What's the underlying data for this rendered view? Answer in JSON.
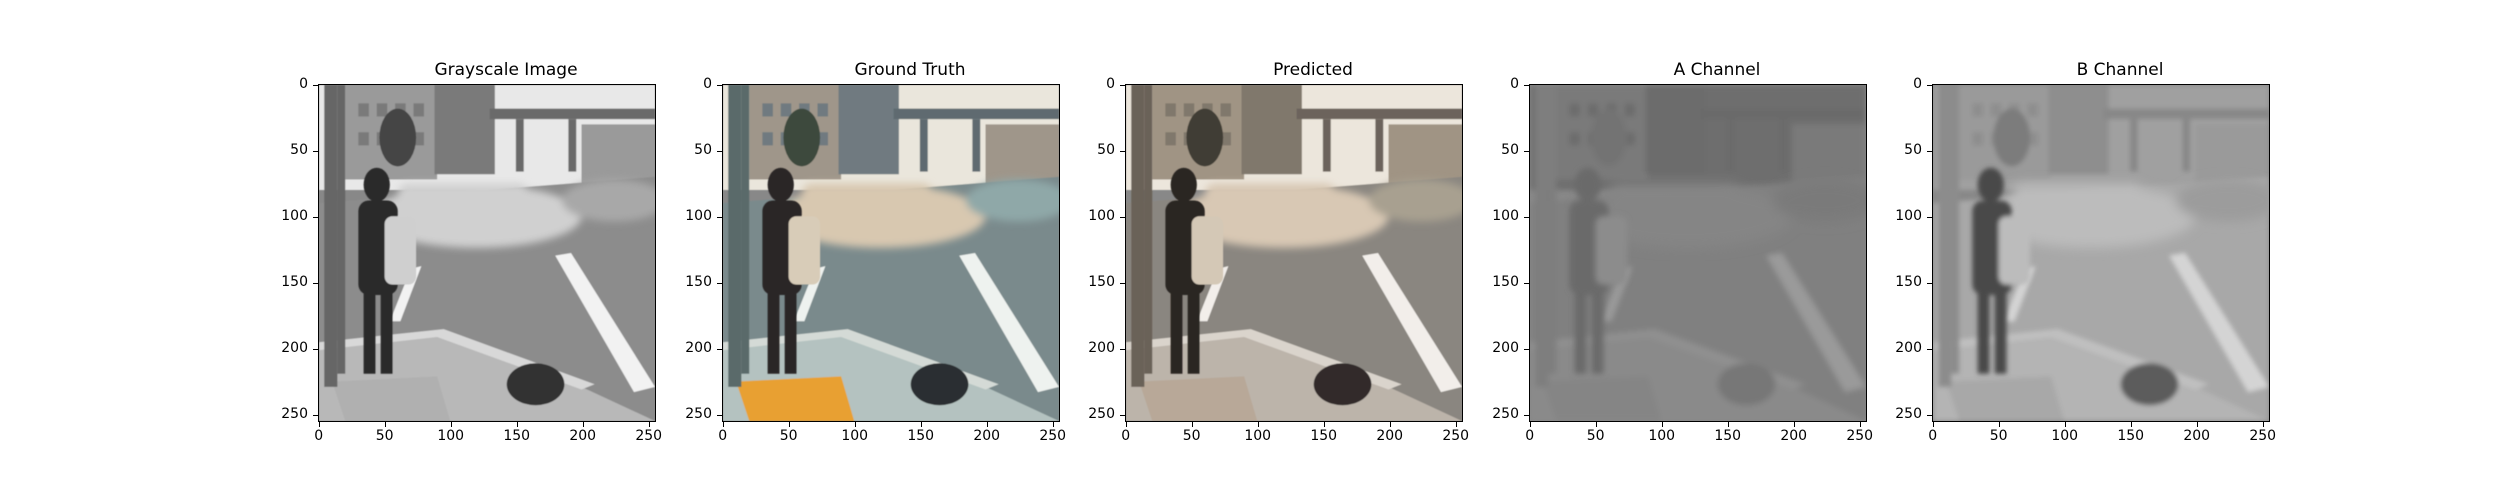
{
  "panels": [
    {
      "title": "Grayscale Image",
      "mode": "gray"
    },
    {
      "title": "Ground Truth",
      "mode": "color"
    },
    {
      "title": "Predicted",
      "mode": "predicted"
    },
    {
      "title": "A Channel",
      "mode": "achannel"
    },
    {
      "title": "B Channel",
      "mode": "bchannel"
    }
  ],
  "axis": {
    "yticks": [
      "0",
      "50",
      "100",
      "150",
      "200",
      "250"
    ],
    "xticks": [
      "0",
      "50",
      "100",
      "150",
      "200",
      "250"
    ],
    "tick_values": [
      0,
      50,
      100,
      150,
      200,
      250
    ],
    "range": [
      0,
      256
    ]
  }
}
